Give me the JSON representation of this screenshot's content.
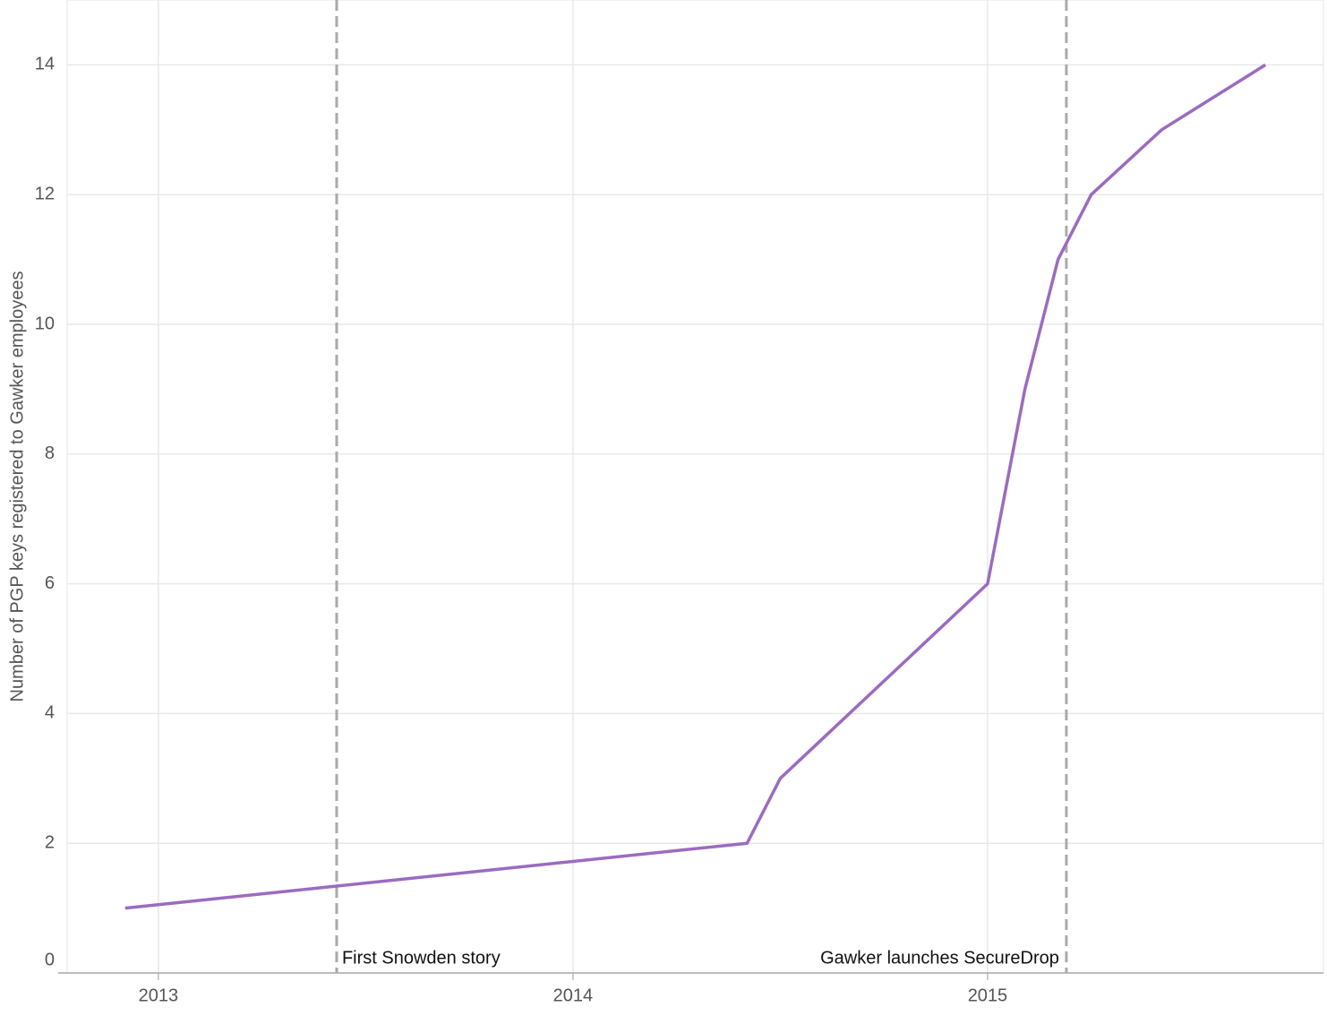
{
  "chart_data": {
    "type": "line",
    "y_label": "Number of PGP keys registered to Gawker employees",
    "x": [
      2012.92,
      2014.42,
      2014.5,
      2015.0,
      2015.09,
      2015.17,
      2015.25,
      2015.42,
      2015.67
    ],
    "series": [
      {
        "name": "PGP keys",
        "color": "#9b6bc0",
        "values": [
          1,
          2,
          3,
          6,
          9,
          11,
          12,
          13,
          14
        ]
      }
    ],
    "xlim": [
      2012.78,
      2015.81
    ],
    "xticks": [
      2013,
      2014,
      2015
    ],
    "ylim": [
      0,
      15
    ],
    "yticks": [
      0,
      2,
      4,
      6,
      8,
      10,
      12,
      14
    ],
    "grid": true,
    "annotations": [
      {
        "x": 2013.43,
        "label": "First Snowden story"
      },
      {
        "x": 2015.19,
        "label": "Gawker launches SecureDrop"
      }
    ]
  }
}
